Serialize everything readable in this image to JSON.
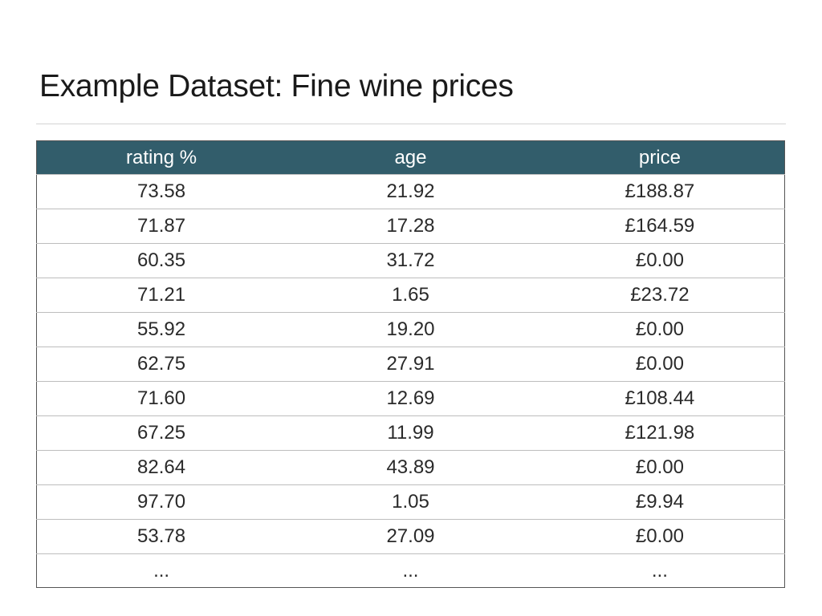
{
  "title": "Example Dataset: Fine wine prices",
  "colors": {
    "header_bg": "#325d6b",
    "header_text": "#ffffff",
    "row_border": "#bdbdbd"
  },
  "table": {
    "headers": [
      "rating %",
      "age",
      "price"
    ],
    "rows": [
      [
        "73.58",
        "21.92",
        "£188.87"
      ],
      [
        "71.87",
        "17.28",
        "£164.59"
      ],
      [
        "60.35",
        "31.72",
        "£0.00"
      ],
      [
        "71.21",
        "1.65",
        "£23.72"
      ],
      [
        "55.92",
        "19.20",
        "£0.00"
      ],
      [
        "62.75",
        "27.91",
        "£0.00"
      ],
      [
        "71.60",
        "12.69",
        "£108.44"
      ],
      [
        "67.25",
        "11.99",
        "£121.98"
      ],
      [
        "82.64",
        "43.89",
        "£0.00"
      ],
      [
        "97.70",
        "1.05",
        "£9.94"
      ],
      [
        "53.78",
        "27.09",
        "£0.00"
      ],
      [
        "...",
        "...",
        "..."
      ]
    ]
  }
}
